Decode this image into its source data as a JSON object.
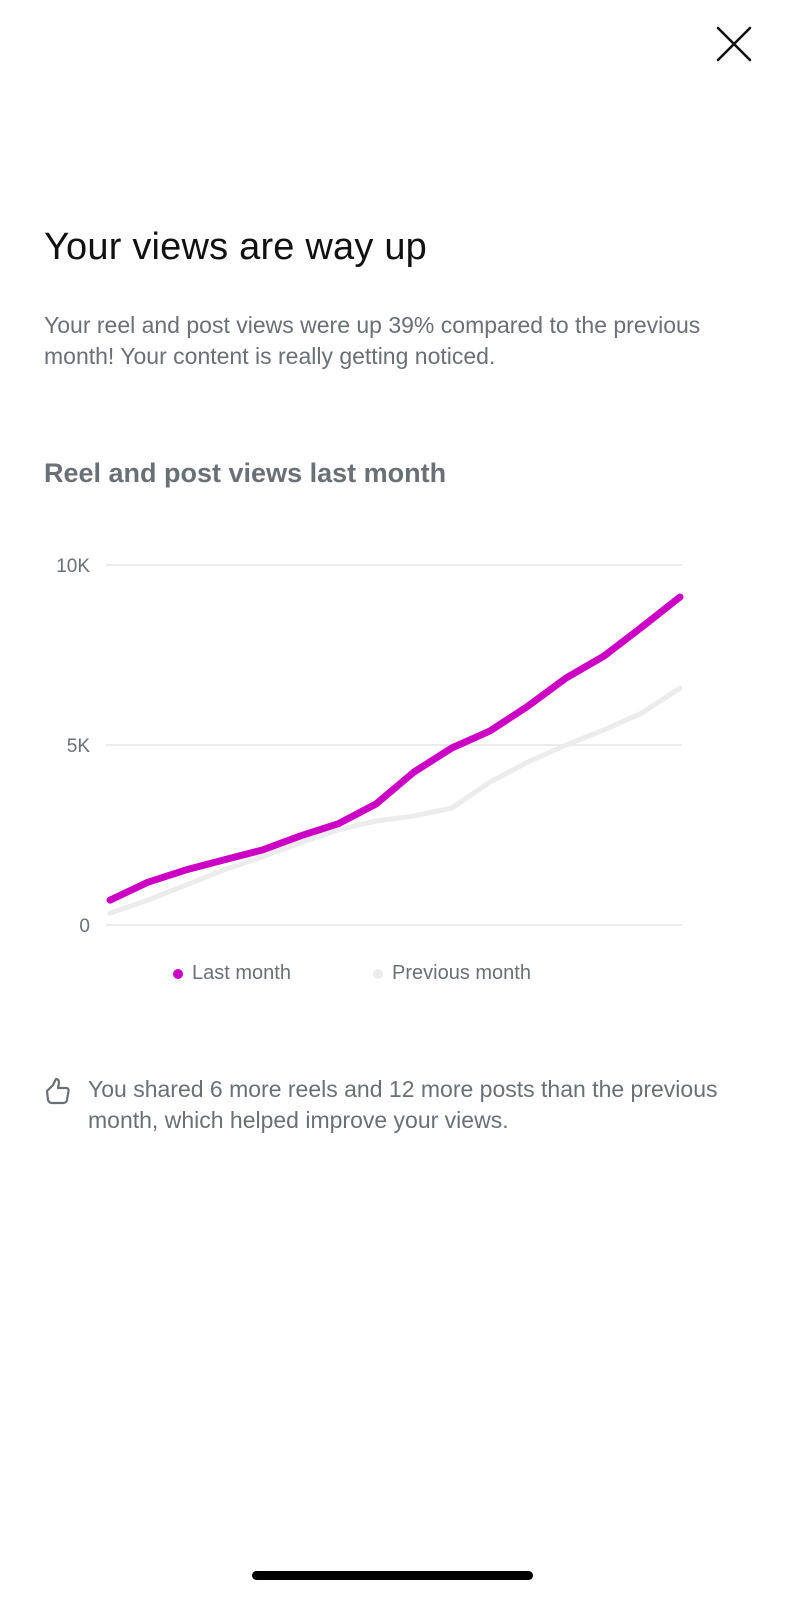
{
  "header": {
    "close_icon": "close-icon"
  },
  "title": "Your views are way up",
  "subtitle": "Your reel and post views were up 39% compared to the previous month! Your content is really getting noticed.",
  "chart_title": "Reel and post views last month",
  "chart_data": {
    "type": "line",
    "title": "Reel and post views last month",
    "xlabel": "",
    "ylabel": "",
    "ylim": [
      0,
      10000
    ],
    "yticks": [
      0,
      5000,
      10000
    ],
    "ytick_labels": [
      "0",
      "5K",
      "10K"
    ],
    "grid": true,
    "legend_position": "bottom",
    "x": [
      1,
      2,
      3,
      4,
      5,
      6,
      7,
      8,
      9,
      10,
      11,
      12,
      13,
      14,
      15,
      16
    ],
    "series": [
      {
        "name": "Last month",
        "color": "#cc00c4",
        "values": [
          690,
          1190,
          1530,
          1810,
          2080,
          2470,
          2810,
          3360,
          4250,
          4920,
          5390,
          6080,
          6860,
          7470,
          8280,
          9110
        ]
      },
      {
        "name": "Previous month",
        "color": "#ececec",
        "values": [
          330,
          690,
          1110,
          1530,
          1890,
          2280,
          2640,
          2890,
          3030,
          3250,
          3970,
          4530,
          5000,
          5420,
          5890,
          6580
        ]
      }
    ]
  },
  "tip": {
    "icon": "thumbs-up-icon",
    "text": "You shared 6 more reels and 12 more posts than the previous month, which helped improve your views."
  }
}
